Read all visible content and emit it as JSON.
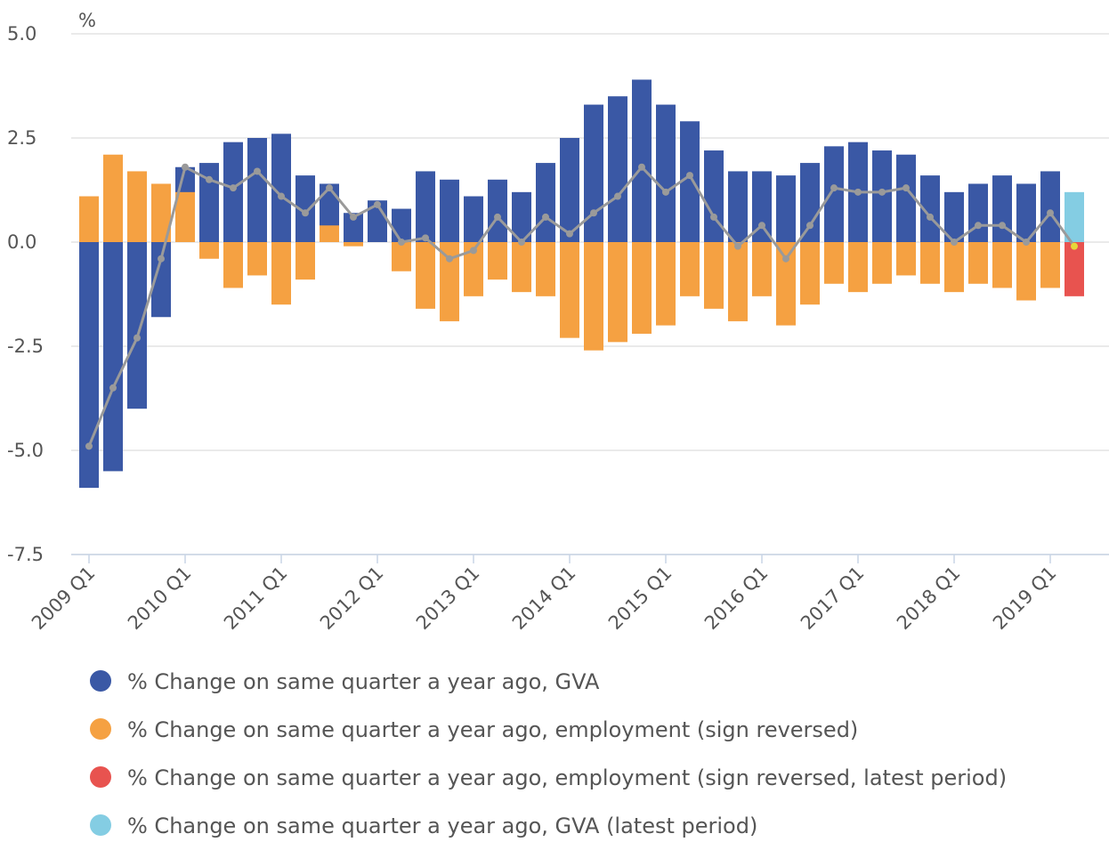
{
  "chart_data": {
    "type": "bar",
    "y_label": "%",
    "categories": [
      "2009 Q1",
      null,
      null,
      null,
      "2010 Q1",
      null,
      null,
      null,
      "2011 Q1",
      null,
      null,
      null,
      "2012 Q1",
      null,
      null,
      null,
      "2013 Q1",
      null,
      null,
      null,
      "2014 Q1",
      null,
      null,
      null,
      "2015 Q1",
      null,
      null,
      null,
      "2016 Q1",
      null,
      null,
      null,
      "2017 Q1",
      null,
      null,
      null,
      "2018 Q1",
      null,
      null,
      null,
      "2019 Q1",
      null
    ],
    "series": [
      {
        "name": "% Change on same quarter a year ago, GVA",
        "color": "#3a58a5",
        "type": "bar",
        "values": [
          -5.9,
          -5.5,
          -4.0,
          -1.8,
          1.8,
          1.9,
          2.4,
          2.5,
          2.6,
          1.6,
          1.4,
          0.7,
          1.0,
          0.8,
          1.7,
          1.5,
          1.1,
          1.5,
          1.2,
          1.9,
          2.5,
          3.3,
          3.5,
          3.9,
          3.3,
          2.9,
          2.2,
          1.7,
          1.7,
          1.6,
          1.9,
          2.3,
          2.4,
          2.2,
          2.1,
          1.6,
          1.2,
          1.4,
          1.6,
          1.4,
          1.7,
          null
        ]
      },
      {
        "name": "% Change on same quarter a year ago, employment (sign reversed)",
        "color": "#f5a142",
        "type": "bar",
        "values": [
          1.1,
          2.1,
          1.7,
          1.4,
          1.2,
          -0.4,
          -1.1,
          -0.8,
          -1.5,
          -0.9,
          0.4,
          -0.1,
          0.0,
          -0.7,
          -1.6,
          -1.9,
          -1.3,
          -0.9,
          -1.2,
          -1.3,
          -2.3,
          -2.6,
          -2.4,
          -2.2,
          -2.0,
          -1.3,
          -1.6,
          -1.9,
          -1.3,
          -2.0,
          -1.5,
          -1.0,
          -1.2,
          -1.0,
          -0.8,
          -1.0,
          -1.2,
          -1.0,
          -1.1,
          -1.4,
          -1.1,
          null
        ]
      },
      {
        "name": "% Change on same quarter a year ago, employment (sign reversed, latest period)",
        "color": "#e8534f",
        "type": "bar",
        "values": [
          null,
          null,
          null,
          null,
          null,
          null,
          null,
          null,
          null,
          null,
          null,
          null,
          null,
          null,
          null,
          null,
          null,
          null,
          null,
          null,
          null,
          null,
          null,
          null,
          null,
          null,
          null,
          null,
          null,
          null,
          null,
          null,
          null,
          null,
          null,
          null,
          null,
          null,
          null,
          null,
          null,
          -1.3
        ]
      },
      {
        "name": "% Change on same quarter a year ago, GVA (latest period)",
        "color": "#84cde3",
        "type": "bar",
        "values": [
          null,
          null,
          null,
          null,
          null,
          null,
          null,
          null,
          null,
          null,
          null,
          null,
          null,
          null,
          null,
          null,
          null,
          null,
          null,
          null,
          null,
          null,
          null,
          null,
          null,
          null,
          null,
          null,
          null,
          null,
          null,
          null,
          null,
          null,
          null,
          null,
          null,
          null,
          null,
          null,
          null,
          1.2
        ]
      },
      {
        "color": "#9a9a9a",
        "type": "line",
        "last_point_color": "#e6d83a",
        "values": [
          -4.9,
          -3.5,
          -2.3,
          -0.4,
          1.8,
          1.5,
          1.3,
          1.7,
          1.1,
          0.7,
          1.3,
          0.6,
          0.9,
          0.0,
          0.1,
          -0.4,
          -0.2,
          0.6,
          0.0,
          0.6,
          0.2,
          0.7,
          1.1,
          1.8,
          1.2,
          1.6,
          0.6,
          -0.1,
          0.4,
          -0.4,
          0.4,
          1.3,
          1.2,
          1.2,
          1.3,
          0.6,
          0.0,
          0.4,
          0.4,
          0.0,
          0.7,
          -0.1
        ]
      }
    ],
    "ylim": [
      -7.5,
      5
    ],
    "yticks": [
      {
        "value": 5,
        "label": "5.0"
      },
      2.5,
      {
        "value": 0,
        "label": "0.0"
      },
      -2.5,
      {
        "value": -5,
        "label": "-5.0"
      },
      -7.5
    ],
    "grid": true
  }
}
